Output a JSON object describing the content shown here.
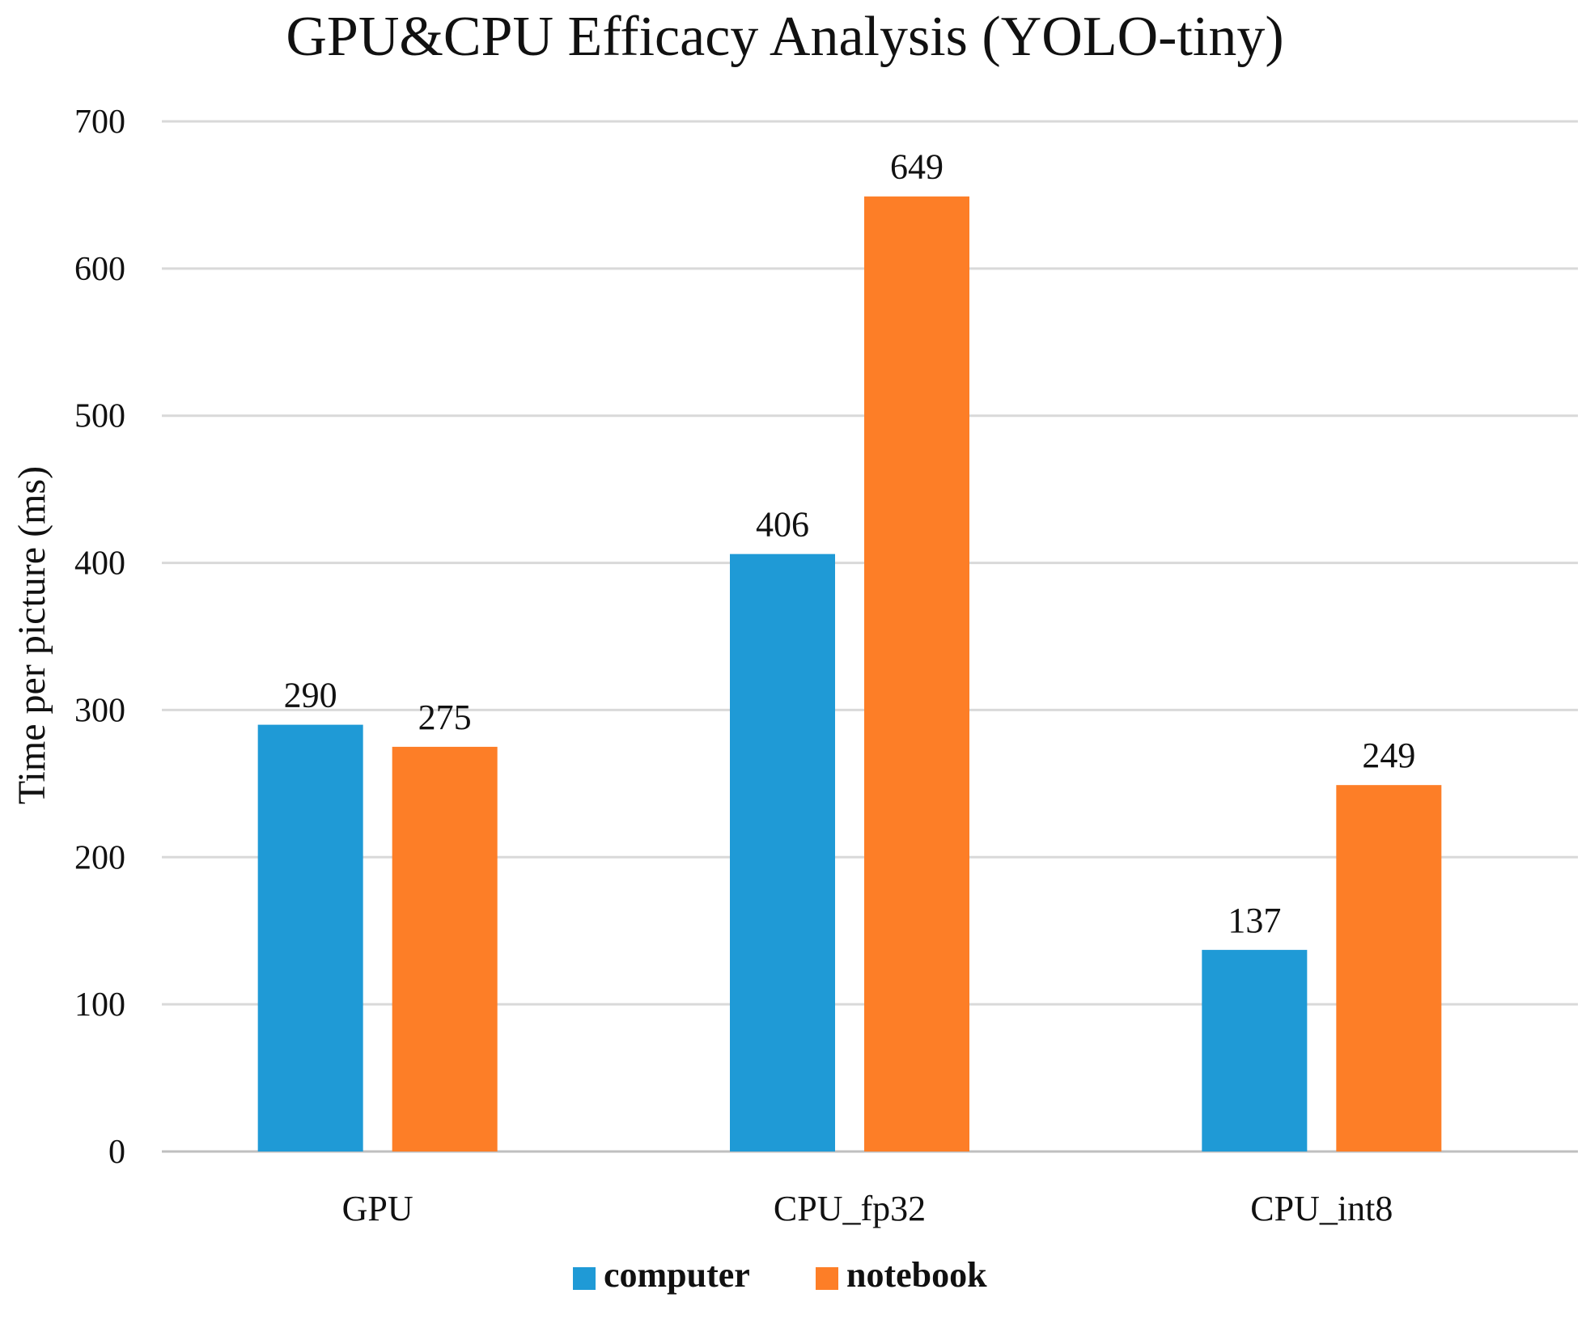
{
  "chart_data": {
    "type": "bar",
    "title": "GPU&CPU Efficacy Analysis (YOLO-tiny)",
    "xlabel": "",
    "ylabel": "Time per picture (ms)",
    "categories": [
      "GPU",
      "CPU_fp32",
      "CPU_int8"
    ],
    "series": [
      {
        "name": "computer",
        "values": [
          290,
          406,
          137
        ],
        "color": "#1f9ad6"
      },
      {
        "name": "notebook",
        "values": [
          275,
          649,
          249
        ],
        "color": "#fd7e27"
      }
    ],
    "ylim": [
      0,
      700
    ],
    "yticks": [
      "0",
      "100",
      "200",
      "300",
      "400",
      "500",
      "600",
      "700"
    ],
    "grid": true,
    "legend_position": "bottom-center",
    "data_labels": true
  }
}
